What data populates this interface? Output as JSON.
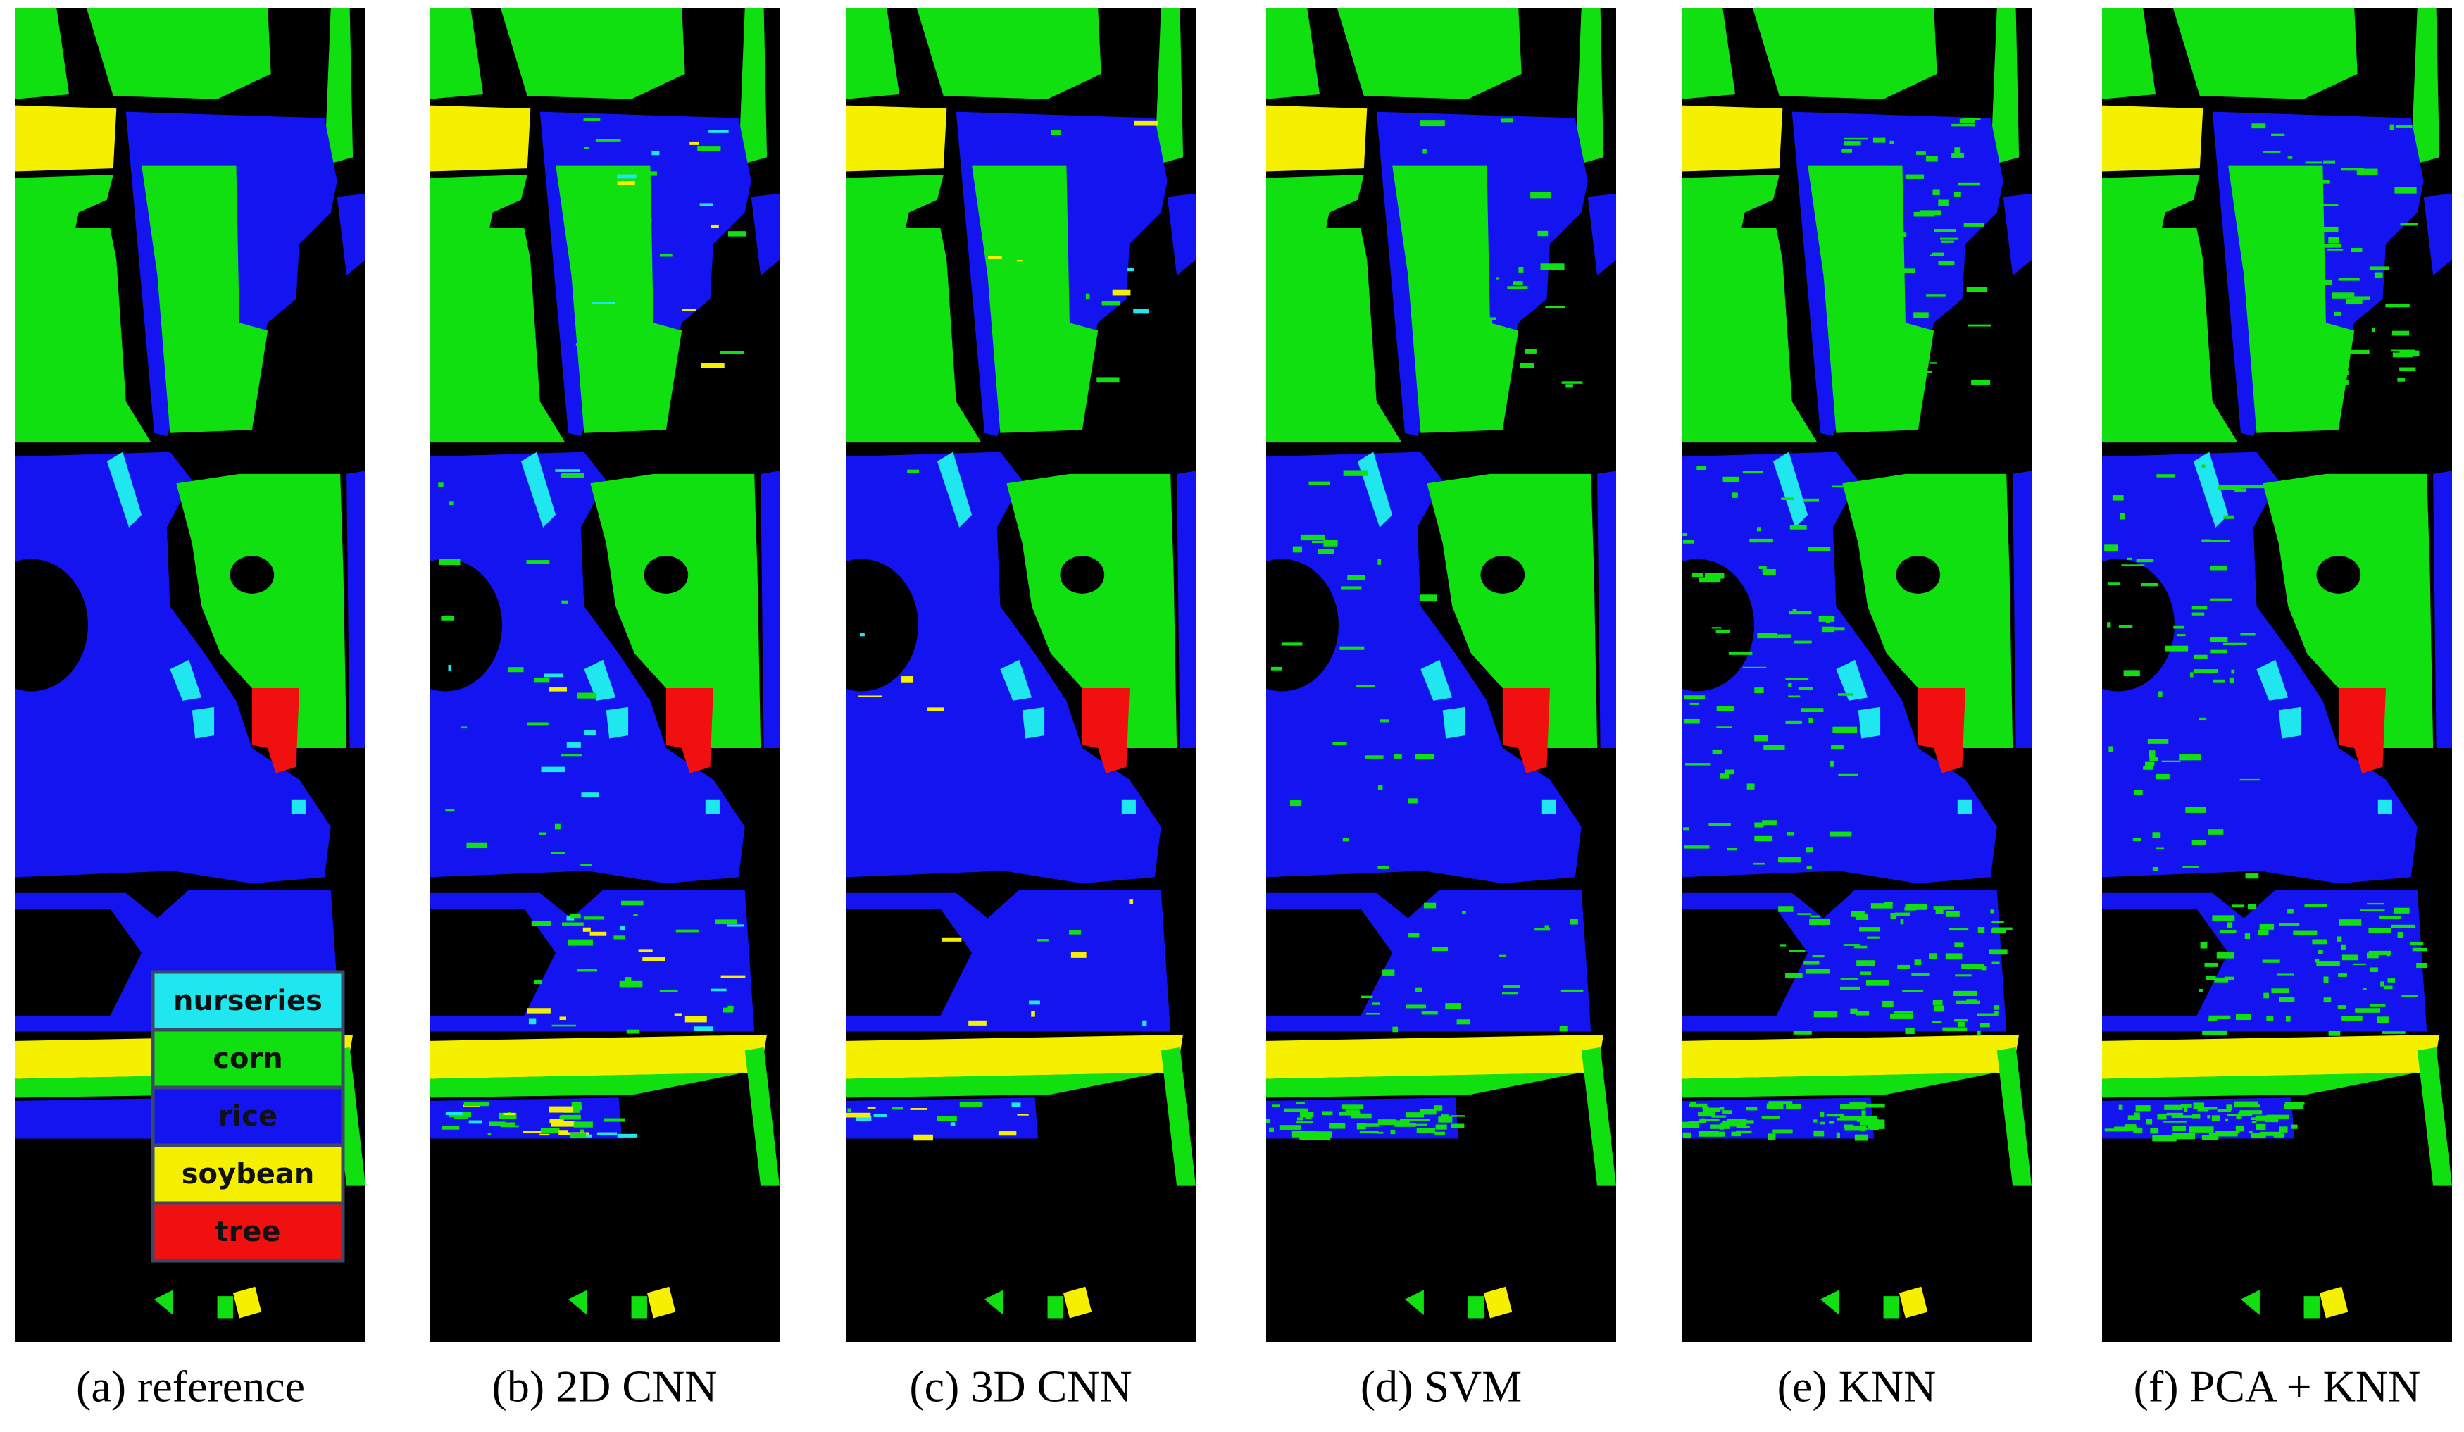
{
  "panels": [
    {
      "caption": "(a) reference"
    },
    {
      "caption": "(b) 2D CNN"
    },
    {
      "caption": "(c) 3D CNN"
    },
    {
      "caption": "(d) SVM"
    },
    {
      "caption": "(e) KNN"
    },
    {
      "caption": "(f) PCA + KNN"
    }
  ],
  "legend": [
    {
      "label": "nurseries",
      "color": "#20e6f0"
    },
    {
      "label": "corn",
      "color": "#10e010"
    },
    {
      "label": "rice",
      "color": "#1414f0"
    },
    {
      "label": "soybean",
      "color": "#f5f000"
    },
    {
      "label": "tree",
      "color": "#f01010"
    }
  ]
}
